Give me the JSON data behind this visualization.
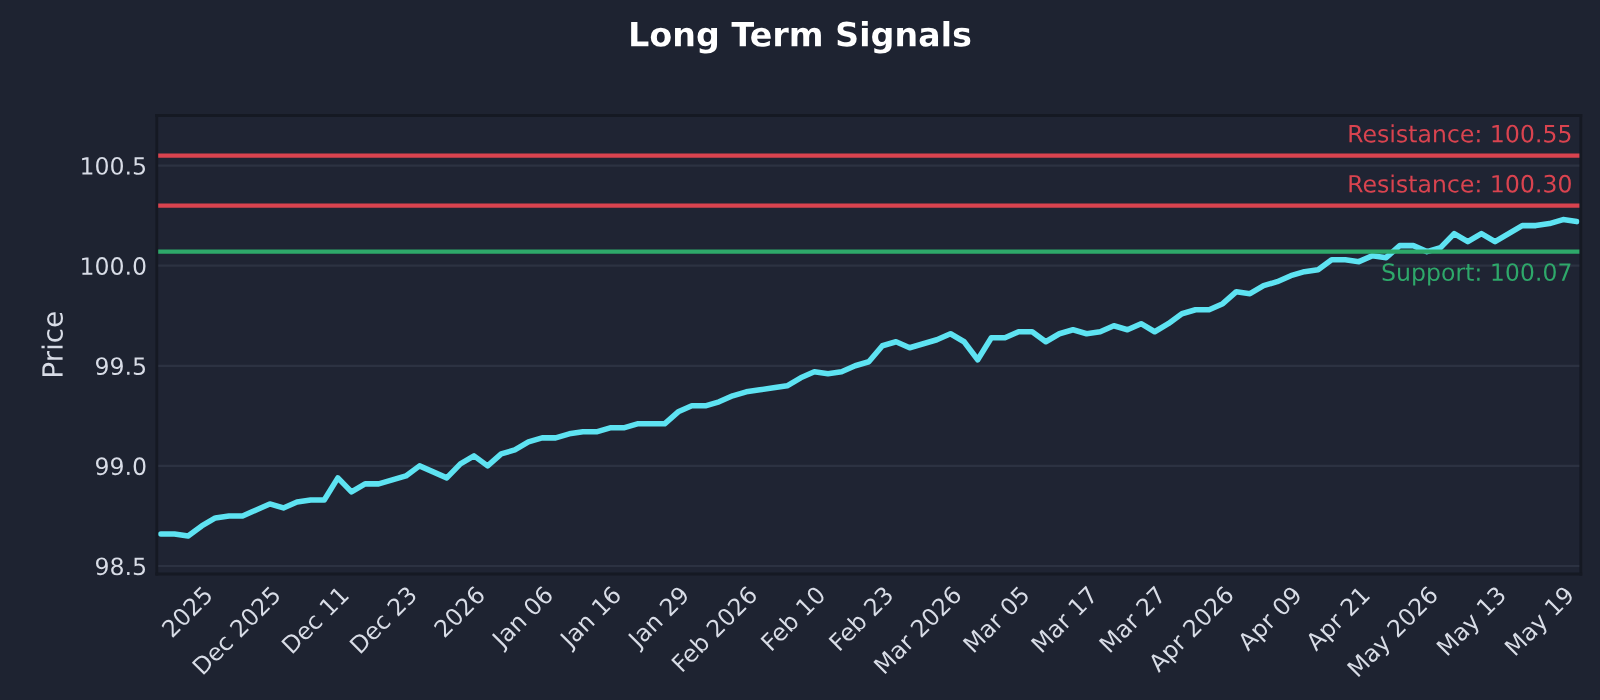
{
  "chart_data": {
    "type": "line",
    "title": "Long Term Signals",
    "ylabel": "Price",
    "categories": [
      null,
      null,
      null,
      "2025",
      null,
      null,
      null,
      null,
      "Dec 2025",
      null,
      null,
      null,
      null,
      "Dec 11",
      null,
      null,
      null,
      null,
      "Dec 23",
      null,
      null,
      null,
      null,
      "2026",
      null,
      null,
      null,
      null,
      "Jan 06",
      null,
      null,
      null,
      null,
      "Jan 16",
      null,
      null,
      null,
      null,
      "Jan 29",
      null,
      null,
      null,
      null,
      "Feb 2026",
      null,
      null,
      null,
      null,
      "Feb 10",
      null,
      null,
      null,
      null,
      "Feb 23",
      null,
      null,
      null,
      null,
      "Mar 2026",
      null,
      null,
      null,
      null,
      "Mar 05",
      null,
      null,
      null,
      null,
      "Mar 17",
      null,
      null,
      null,
      null,
      "Mar 27",
      null,
      null,
      null,
      null,
      "Apr 2026",
      null,
      null,
      null,
      null,
      "Apr 09",
      null,
      null,
      null,
      null,
      "Apr 21",
      null,
      null,
      null,
      null,
      "May 2026",
      null,
      null,
      null,
      null,
      "May 13",
      null,
      null,
      null,
      null,
      "May 19",
      null
    ],
    "series": [
      {
        "color": "#5ee3f2",
        "values": [
          98.66,
          98.66,
          98.65,
          98.7,
          98.74,
          98.75,
          98.75,
          98.78,
          98.81,
          98.79,
          98.82,
          98.83,
          98.83,
          98.94,
          98.87,
          98.91,
          98.91,
          98.93,
          98.95,
          99.0,
          98.97,
          98.94,
          99.01,
          99.05,
          99.0,
          99.06,
          99.08,
          99.12,
          99.14,
          99.14,
          99.16,
          99.17,
          99.17,
          99.19,
          99.19,
          99.21,
          99.21,
          99.21,
          99.27,
          99.3,
          99.3,
          99.32,
          99.35,
          99.37,
          99.38,
          99.39,
          99.4,
          99.44,
          99.47,
          99.46,
          99.47,
          99.5,
          99.52,
          99.6,
          99.62,
          99.59,
          99.61,
          99.63,
          99.66,
          99.62,
          99.53,
          99.64,
          99.64,
          99.67,
          99.67,
          99.62,
          99.66,
          99.68,
          99.66,
          99.67,
          99.7,
          99.68,
          99.71,
          99.67,
          99.71,
          99.76,
          99.78,
          99.78,
          99.81,
          99.87,
          99.86,
          99.9,
          99.92,
          99.95,
          99.97,
          99.98,
          100.03,
          100.03,
          100.02,
          100.05,
          100.04,
          100.1,
          100.1,
          100.07,
          100.09,
          100.16,
          100.12,
          100.16,
          100.12,
          100.16,
          100.2,
          100.2,
          100.21,
          100.23,
          100.22
        ]
      }
    ],
    "ylim": [
      98.46,
      100.75
    ],
    "yticks": [
      {
        "value": 98.5,
        "label": "98.5"
      },
      {
        "value": 99.0,
        "label": "99.0"
      },
      {
        "value": 99.5,
        "label": "99.5"
      },
      {
        "value": 100.0,
        "label": "100.0"
      },
      {
        "value": 100.5,
        "label": "100.5"
      }
    ],
    "grid": "y",
    "legend": false,
    "marker": "none",
    "line_style": "solid",
    "ref_lines": [
      {
        "axis": "y",
        "value": 100.55,
        "label": "Resistance: 100.55",
        "color": "#d9434f"
      },
      {
        "axis": "y",
        "value": 100.3,
        "label": "Resistance: 100.30",
        "color": "#d9434f"
      },
      {
        "axis": "y",
        "value": 100.07,
        "label": "Support: 100.07",
        "color": "#2ea86a"
      }
    ]
  }
}
